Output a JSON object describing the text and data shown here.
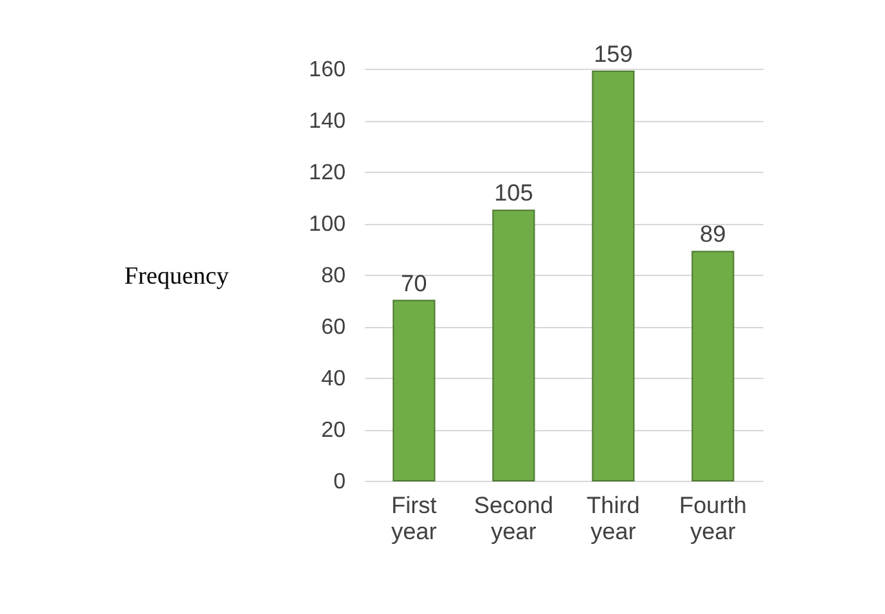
{
  "chart_data": {
    "type": "bar",
    "ylabel": "Frequency",
    "categories": [
      "First year",
      "Second year",
      "Third year",
      "Fourth year"
    ],
    "values": [
      70,
      105,
      159,
      89
    ],
    "color": "#70ad47",
    "ylim": [
      0,
      160
    ],
    "yticks": [
      0,
      20,
      40,
      60,
      80,
      100,
      120,
      140,
      160
    ],
    "grid": "y",
    "data_labels": true
  }
}
